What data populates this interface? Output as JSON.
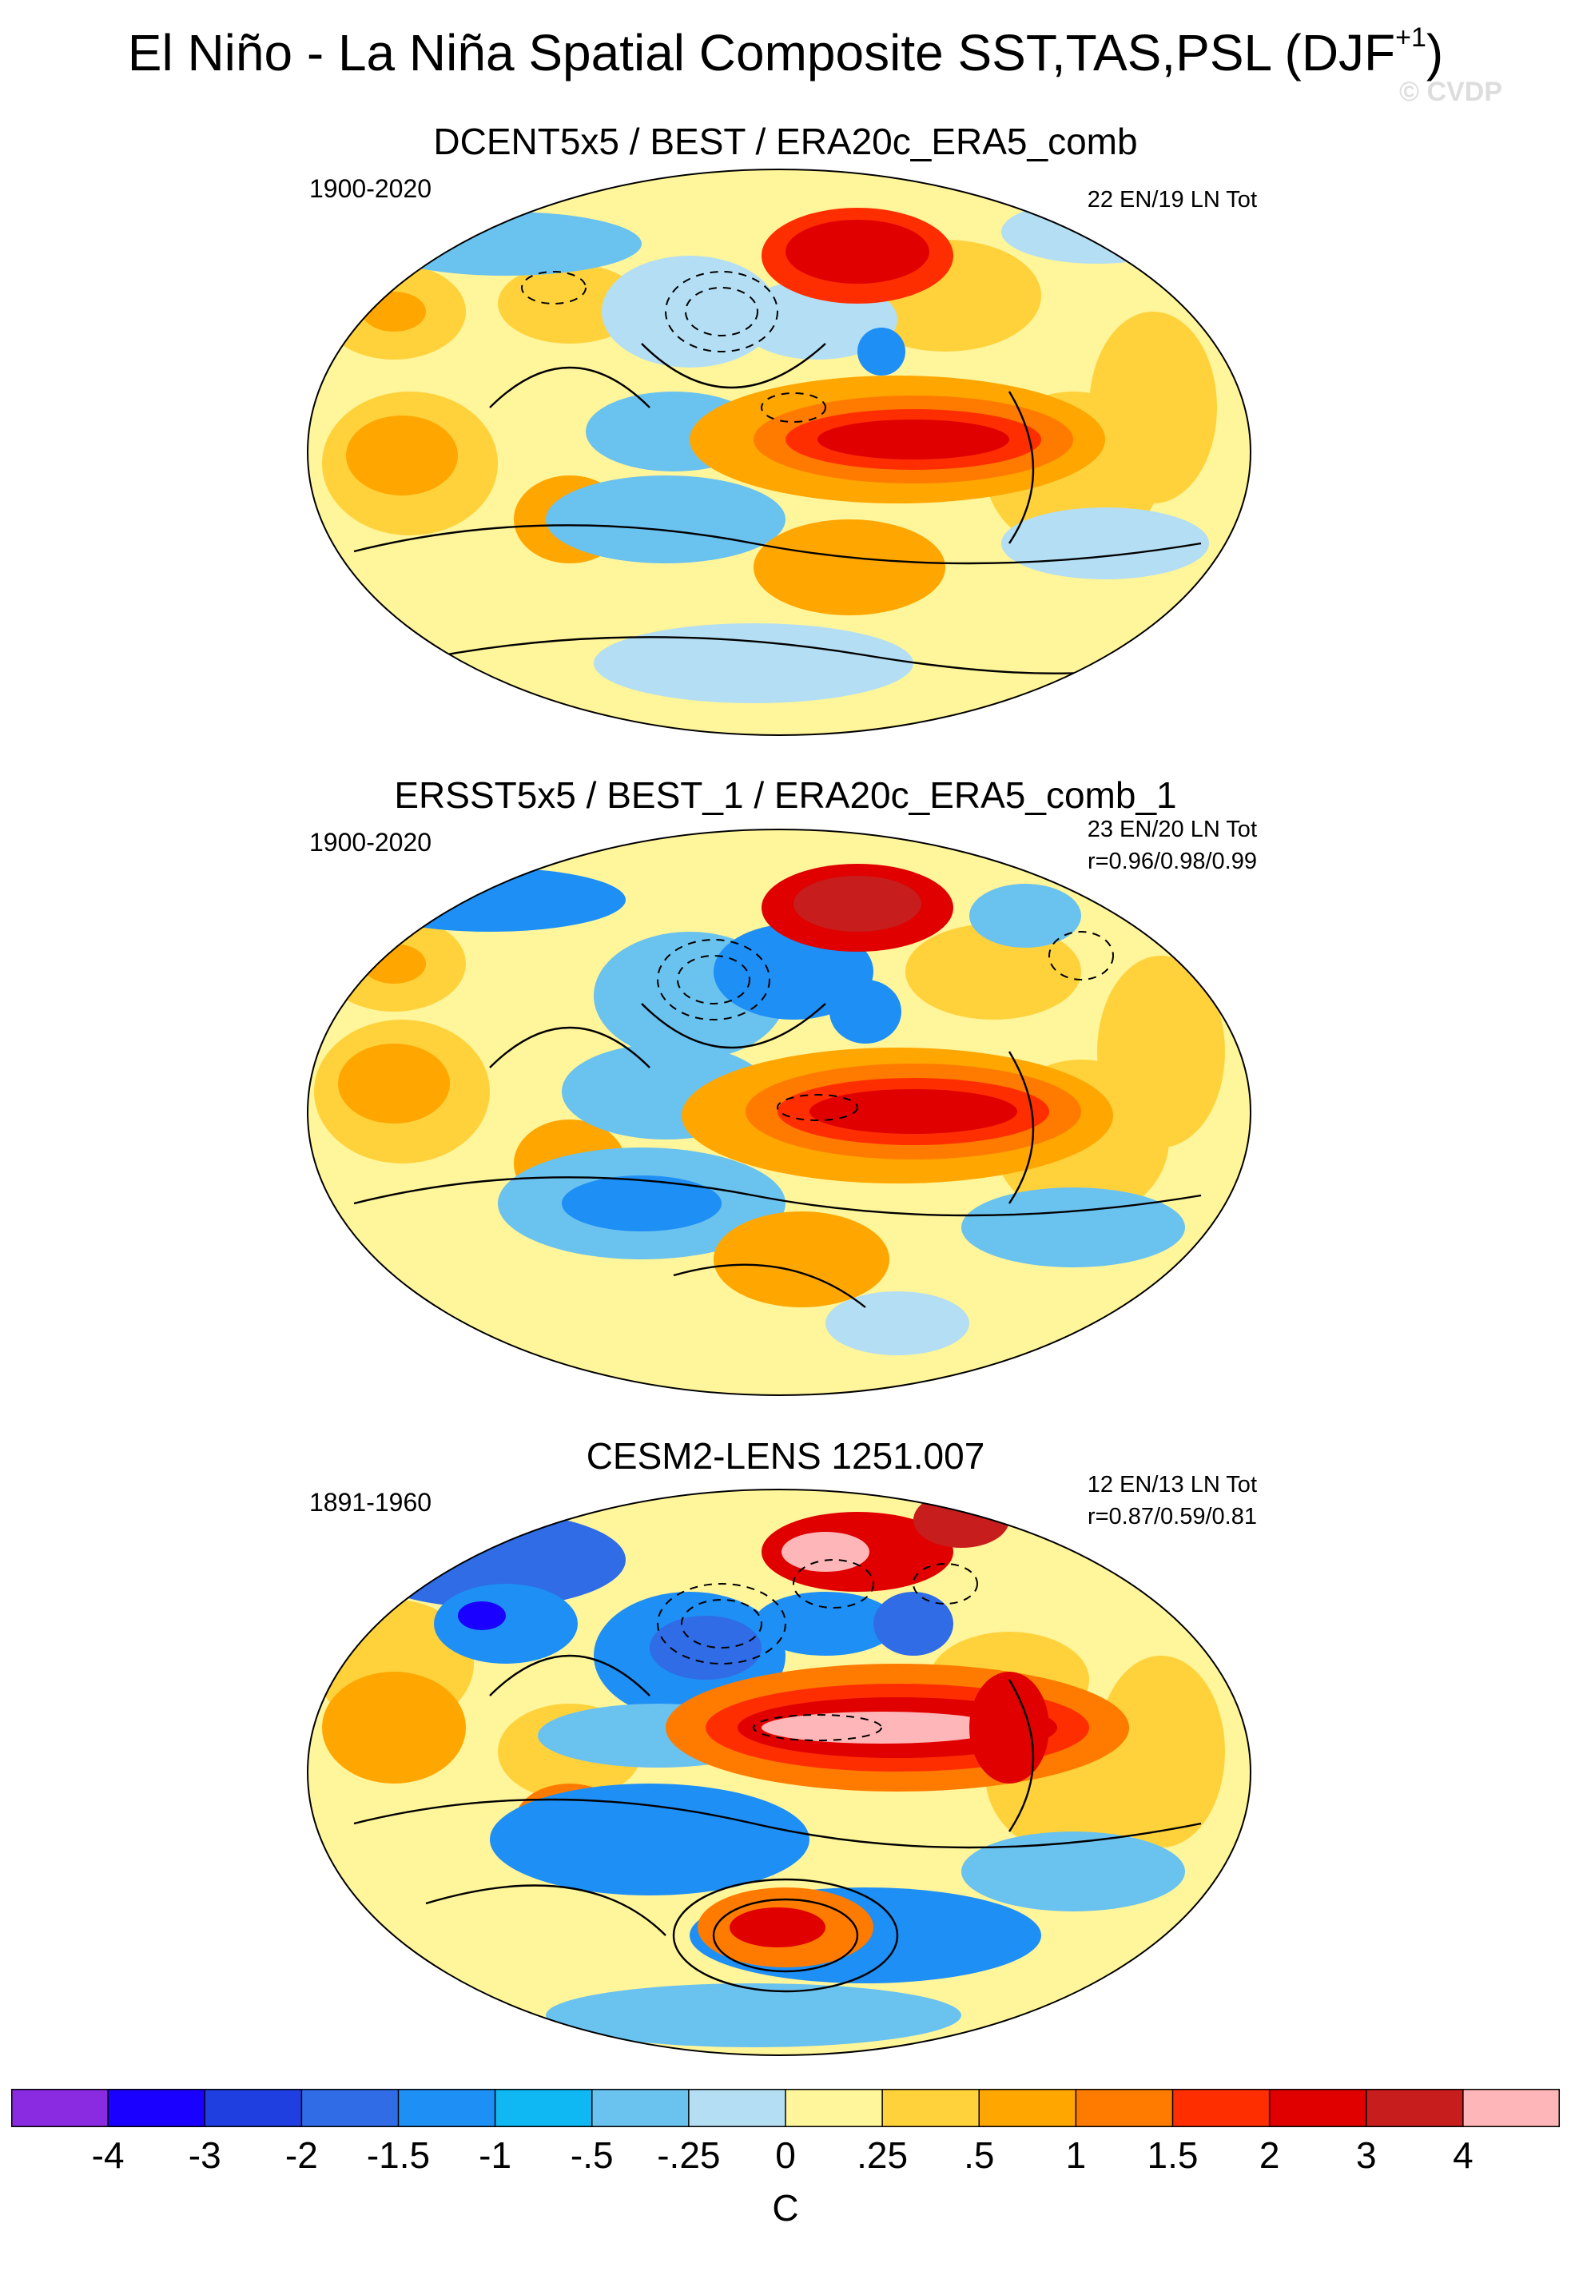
{
  "figure": {
    "title_main": "El Niño - La Niña Spatial Composite SST,TAS,PSL (DJF",
    "title_sup": "+1",
    "title_close": ")",
    "watermark": "© CVDP"
  },
  "panels": [
    {
      "title": "DCENT5x5 / BEST / ERA20c_ERA5_comb",
      "period": "1900-2020",
      "counts": "22 EN/19 LN Tot",
      "correlation": ""
    },
    {
      "title": "ERSST5x5 / BEST_1 / ERA20c_ERA5_comb_1",
      "period": "1900-2020",
      "counts": "23 EN/20 LN Tot",
      "correlation": "r=0.96/0.98/0.99"
    },
    {
      "title": "CESM2-LENS 1251.007",
      "period": "1891-1960",
      "counts": "12 EN/13 LN Tot",
      "correlation": "r=0.87/0.59/0.81"
    }
  ],
  "colorbar": {
    "colors": [
      "#8a2be2",
      "#1a00ff",
      "#1f3fe0",
      "#2f6ce6",
      "#1e8ff5",
      "#0fb8f3",
      "#6ac2ef",
      "#b3def3",
      "#fff59a",
      "#ffd23c",
      "#ffa600",
      "#ff7b00",
      "#ff2e00",
      "#e00000",
      "#c71d1d",
      "#ffb6b8"
    ],
    "labels": [
      "-4",
      "-3",
      "-2",
      "-1.5",
      "-1",
      "-.5",
      "-.25",
      "0",
      ".25",
      ".5",
      "1",
      "1.5",
      "2",
      "3",
      "4"
    ],
    "units": "C"
  },
  "palette": {
    "ocean_background": "#fff59a",
    "land_mask": "#ffffff"
  }
}
